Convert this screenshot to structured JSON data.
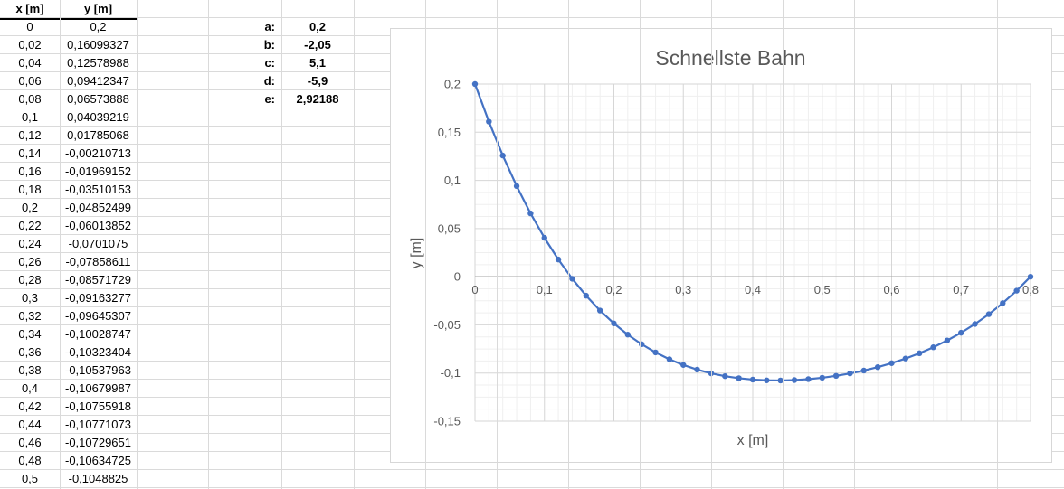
{
  "sheet": {
    "table": {
      "headers": [
        "x [m]",
        "y [m]"
      ],
      "rows": [
        [
          "0",
          "0,2"
        ],
        [
          "0,02",
          "0,16099327"
        ],
        [
          "0,04",
          "0,12578988"
        ],
        [
          "0,06",
          "0,09412347"
        ],
        [
          "0,08",
          "0,06573888"
        ],
        [
          "0,1",
          "0,04039219"
        ],
        [
          "0,12",
          "0,01785068"
        ],
        [
          "0,14",
          "-0,00210713"
        ],
        [
          "0,16",
          "-0,01969152"
        ],
        [
          "0,18",
          "-0,03510153"
        ],
        [
          "0,2",
          "-0,04852499"
        ],
        [
          "0,22",
          "-0,06013852"
        ],
        [
          "0,24",
          "-0,0701075"
        ],
        [
          "0,26",
          "-0,07858611"
        ],
        [
          "0,28",
          "-0,08571729"
        ],
        [
          "0,3",
          "-0,09163277"
        ],
        [
          "0,32",
          "-0,09645307"
        ],
        [
          "0,34",
          "-0,10028747"
        ],
        [
          "0,36",
          "-0,10323404"
        ],
        [
          "0,38",
          "-0,10537963"
        ],
        [
          "0,4",
          "-0,10679987"
        ],
        [
          "0,42",
          "-0,10755918"
        ],
        [
          "0,44",
          "-0,10771073"
        ],
        [
          "0,46",
          "-0,10729651"
        ],
        [
          "0,48",
          "-0,10634725"
        ],
        [
          "0,5",
          "-0,1048825"
        ]
      ]
    },
    "parameters": [
      {
        "label": "a:",
        "value": "0,2"
      },
      {
        "label": "b:",
        "value": "-2,05"
      },
      {
        "label": "c:",
        "value": "5,1"
      },
      {
        "label": "d:",
        "value": "-5,9"
      },
      {
        "label": "e:",
        "value": "2,92188"
      }
    ]
  },
  "chart": {
    "title": "Schnellste Bahn",
    "xlabel": "x [m]",
    "ylabel": "y [m]"
  },
  "chart_data": {
    "type": "line",
    "title": "Schnellste Bahn",
    "xlabel": "x [m]",
    "ylabel": "y [m]",
    "marker": "circle",
    "legend": "none",
    "grid": "major+minor",
    "xlim": [
      0,
      0.8
    ],
    "ylim": [
      -0.15,
      0.2
    ],
    "minor_step_x": 0.02,
    "minor_step_y": 0.0125,
    "x_ticks": {
      "labels": [
        "0",
        "0,1",
        "0,2",
        "0,3",
        "0,4",
        "0,5",
        "0,6",
        "0,7",
        "0,8"
      ],
      "values": [
        0,
        0.1,
        0.2,
        0.3,
        0.4,
        0.5,
        0.6,
        0.7,
        0.8
      ]
    },
    "y_ticks": {
      "labels": [
        "0,2",
        "0,15",
        "0,1",
        "0,05",
        "0",
        "-0,05",
        "-0,1",
        "-0,15"
      ],
      "values": [
        0.2,
        0.15,
        0.1,
        0.05,
        0,
        -0.05,
        -0.1,
        -0.15
      ]
    },
    "x": [
      0,
      0.02,
      0.04,
      0.06,
      0.08,
      0.1,
      0.12,
      0.14,
      0.16,
      0.18,
      0.2,
      0.22,
      0.24,
      0.26,
      0.28,
      0.3,
      0.32,
      0.34,
      0.36,
      0.38,
      0.4,
      0.42,
      0.44,
      0.46,
      0.48,
      0.5,
      0.52,
      0.54,
      0.56,
      0.58,
      0.6,
      0.62,
      0.64,
      0.66,
      0.68,
      0.7,
      0.72,
      0.74,
      0.76,
      0.78,
      0.8
    ],
    "y": [
      0.2,
      0.16099327,
      0.12578988,
      0.09412347,
      0.06573888,
      0.04039219,
      0.01785068,
      -0.00210713,
      -0.01969152,
      -0.03510153,
      -0.04852499,
      -0.06013852,
      -0.0701075,
      -0.07858611,
      -0.08571729,
      -0.09163277,
      -0.09645307,
      -0.10028747,
      -0.10323404,
      -0.10537963,
      -0.10679987,
      -0.10755918,
      -0.10771073,
      -0.10729651,
      -0.10634725,
      -0.1048825,
      -0.10291062,
      -0.10042851,
      -0.09742223,
      -0.09386637,
      -0.08972435,
      -0.0849484,
      -0.07947949,
      -0.07324739,
      -0.06617066,
      -0.05815661,
      -0.04910138,
      -0.03888984,
      -0.02739566,
      -0.01448129,
      0
    ]
  },
  "colors": {
    "series": "#4472C4",
    "chart_text": "#595959",
    "sheet_gridline": "#dadada",
    "major_gridline": "#d6d6d6",
    "minor_gridline": "#efefef",
    "axis_line": "#a6a6a6"
  }
}
